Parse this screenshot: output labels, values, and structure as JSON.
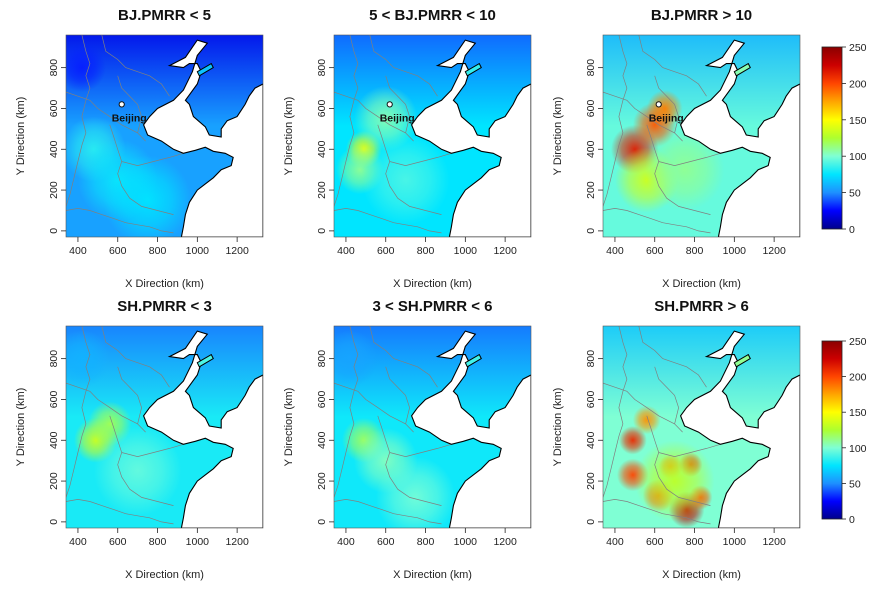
{
  "chart_data": [
    {
      "type": "heatmap",
      "title": "BJ.PMRR < 5",
      "xlabel": "X Direction (km)",
      "ylabel": "Y Direction (km)",
      "xlim": [
        340,
        1330
      ],
      "ylim": [
        -30,
        960
      ],
      "xticks": [
        400,
        600,
        800,
        1000,
        1200
      ],
      "yticks": [
        0,
        200,
        400,
        600,
        800
      ],
      "city_label": "Beijing",
      "city_point": [
        620,
        620
      ],
      "base_level": 55,
      "hotspots": [
        {
          "x": 480,
          "y": 400,
          "radius": 160,
          "value": 28
        },
        {
          "x": 600,
          "y": 250,
          "radius": 200,
          "value": 22
        },
        {
          "x": 750,
          "y": 150,
          "radius": 220,
          "value": 20
        },
        {
          "x": 420,
          "y": 800,
          "radius": 120,
          "value": -25
        }
      ]
    },
    {
      "type": "heatmap",
      "title": "5 < BJ.PMRR < 10",
      "xlabel": "X Direction (km)",
      "ylabel": "Y Direction (km)",
      "xlim": [
        340,
        1330
      ],
      "ylim": [
        -30,
        960
      ],
      "xticks": [
        400,
        600,
        800,
        1000,
        1200
      ],
      "yticks": [
        0,
        200,
        400,
        600,
        800
      ],
      "city_label": "Beijing",
      "city_point": [
        620,
        620
      ],
      "base_level": 75,
      "hotspots": [
        {
          "x": 490,
          "y": 400,
          "radius": 90,
          "value": 70
        },
        {
          "x": 470,
          "y": 300,
          "radius": 120,
          "value": 35
        },
        {
          "x": 600,
          "y": 550,
          "radius": 160,
          "value": 30
        },
        {
          "x": 700,
          "y": 250,
          "radius": 220,
          "value": 15
        }
      ]
    },
    {
      "type": "heatmap",
      "title": "BJ.PMRR > 10",
      "xlabel": "X Direction (km)",
      "ylabel": "Y Direction (km)",
      "xlim": [
        340,
        1330
      ],
      "ylim": [
        -30,
        960
      ],
      "xticks": [
        400,
        600,
        800,
        1000,
        1200
      ],
      "yticks": [
        0,
        200,
        400,
        600,
        800
      ],
      "city_label": "Beijing",
      "city_point": [
        620,
        620
      ],
      "base_level": 95,
      "hotspots": [
        {
          "x": 500,
          "y": 400,
          "radius": 120,
          "value": 120
        },
        {
          "x": 600,
          "y": 520,
          "radius": 110,
          "value": 100
        },
        {
          "x": 650,
          "y": 600,
          "radius": 90,
          "value": 90
        },
        {
          "x": 560,
          "y": 250,
          "radius": 160,
          "value": 40
        },
        {
          "x": 750,
          "y": 300,
          "radius": 200,
          "value": 15
        }
      ]
    },
    {
      "type": "heatmap",
      "title": "SH.PMRR < 3",
      "xlabel": "X Direction (km)",
      "ylabel": "Y Direction (km)",
      "xlim": [
        340,
        1330
      ],
      "ylim": [
        -30,
        960
      ],
      "xticks": [
        400,
        600,
        800,
        1000,
        1200
      ],
      "yticks": [
        0,
        200,
        400,
        600,
        800
      ],
      "base_level": 80,
      "hotspots": [
        {
          "x": 490,
          "y": 400,
          "radius": 110,
          "value": 55
        },
        {
          "x": 560,
          "y": 480,
          "radius": 110,
          "value": 40
        },
        {
          "x": 700,
          "y": 250,
          "radius": 220,
          "value": 15
        },
        {
          "x": 420,
          "y": 800,
          "radius": 140,
          "value": -20
        }
      ]
    },
    {
      "type": "heatmap",
      "title": "3 < SH.PMRR < 6",
      "xlabel": "X Direction (km)",
      "ylabel": "Y Direction (km)",
      "xlim": [
        340,
        1330
      ],
      "ylim": [
        -30,
        960
      ],
      "xticks": [
        400,
        600,
        800,
        1000,
        1200
      ],
      "yticks": [
        0,
        200,
        400,
        600,
        800
      ],
      "base_level": 78,
      "hotspots": [
        {
          "x": 490,
          "y": 400,
          "radius": 110,
          "value": 40
        },
        {
          "x": 600,
          "y": 300,
          "radius": 160,
          "value": 25
        },
        {
          "x": 750,
          "y": 120,
          "radius": 200,
          "value": 20
        },
        {
          "x": 420,
          "y": 800,
          "radius": 140,
          "value": -22
        }
      ]
    },
    {
      "type": "heatmap",
      "title": "SH.PMRR > 6",
      "xlabel": "X Direction (km)",
      "ylabel": "Y Direction (km)",
      "xlim": [
        340,
        1330
      ],
      "ylim": [
        -30,
        960
      ],
      "xticks": [
        400,
        600,
        800,
        1000,
        1200
      ],
      "yticks": [
        0,
        200,
        400,
        600,
        800
      ],
      "base_level": 100,
      "hotspots": [
        {
          "x": 490,
          "y": 400,
          "radius": 70,
          "value": 110
        },
        {
          "x": 490,
          "y": 230,
          "radius": 80,
          "value": 100
        },
        {
          "x": 560,
          "y": 500,
          "radius": 70,
          "value": 80
        },
        {
          "x": 680,
          "y": 270,
          "radius": 60,
          "value": 90
        },
        {
          "x": 780,
          "y": 280,
          "radius": 60,
          "value": 110
        },
        {
          "x": 620,
          "y": 130,
          "radius": 80,
          "value": 95
        },
        {
          "x": 760,
          "y": 60,
          "radius": 90,
          "value": 130
        },
        {
          "x": 830,
          "y": 120,
          "radius": 60,
          "value": 100
        },
        {
          "x": 700,
          "y": 200,
          "radius": 200,
          "value": 30
        }
      ]
    }
  ],
  "colorbar": {
    "min": 0,
    "max": 250,
    "ticks": [
      0,
      50,
      100,
      150,
      200,
      250
    ],
    "colors": [
      "#00008b",
      "#0000ff",
      "#1e90ff",
      "#00e5ff",
      "#7fffd4",
      "#adff2f",
      "#ffff00",
      "#ffa500",
      "#ff4500",
      "#cc0000",
      "#8b0000"
    ]
  },
  "colors": {
    "land_stroke": "#000000",
    "province_stroke": "#808080",
    "sea": "#ffffff"
  }
}
